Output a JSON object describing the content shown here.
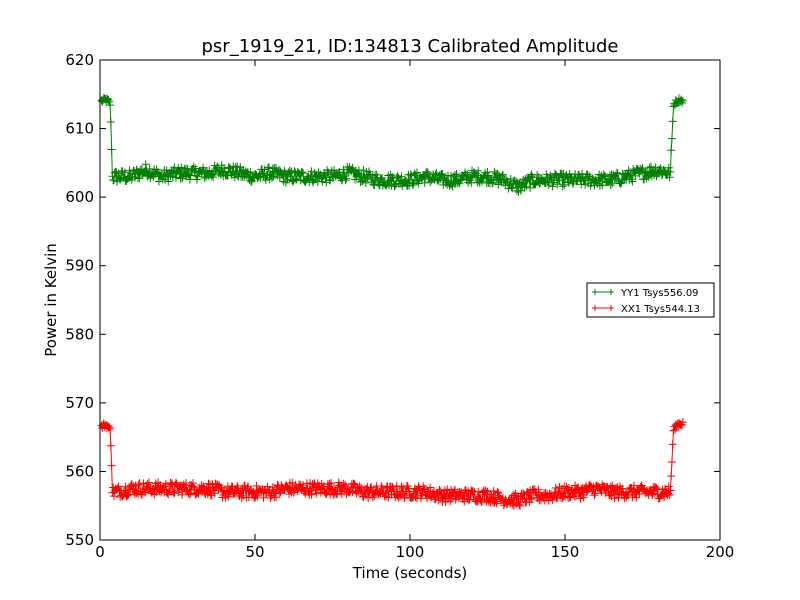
{
  "chart_data": {
    "type": "line",
    "title": "psr_1919_21, ID:134813 Calibrated Amplitude",
    "xlabel": "Time (seconds)",
    "ylabel": "Power in Kelvin",
    "xlim": [
      0,
      200
    ],
    "ylim": [
      550,
      620
    ],
    "xticks": [
      0,
      50,
      100,
      150,
      200
    ],
    "yticks": [
      550,
      560,
      570,
      580,
      590,
      600,
      610,
      620
    ],
    "grid": false,
    "legend_position": "center-right",
    "marker": "plus",
    "series": [
      {
        "name": "YY1 Tsys556.09",
        "color": "#008000",
        "points": [
          [
            0.5,
            614.0
          ],
          [
            1.5,
            614.2
          ],
          [
            2.5,
            614.1
          ],
          [
            3.3,
            613.5
          ],
          [
            3.7,
            608.0
          ],
          [
            4.0,
            603.0
          ],
          [
            5,
            603.0
          ],
          [
            10,
            603.0
          ],
          [
            15,
            604.0
          ],
          [
            20,
            603.0
          ],
          [
            25,
            603.5
          ],
          [
            30,
            603.5
          ],
          [
            35,
            603.5
          ],
          [
            40,
            604.0
          ],
          [
            45,
            603.5
          ],
          [
            50,
            603.0
          ],
          [
            55,
            603.5
          ],
          [
            60,
            603.0
          ],
          [
            65,
            603.0
          ],
          [
            70,
            603.0
          ],
          [
            75,
            603.0
          ],
          [
            80,
            603.5
          ],
          [
            85,
            603.0
          ],
          [
            90,
            602.5
          ],
          [
            95,
            602.5
          ],
          [
            100,
            602.5
          ],
          [
            105,
            603.0
          ],
          [
            110,
            602.5
          ],
          [
            115,
            602.5
          ],
          [
            120,
            603.0
          ],
          [
            125,
            603.0
          ],
          [
            130,
            602.5
          ],
          [
            135,
            601.5
          ],
          [
            140,
            602.5
          ],
          [
            145,
            602.5
          ],
          [
            150,
            602.5
          ],
          [
            155,
            602.5
          ],
          [
            160,
            602.5
          ],
          [
            165,
            602.5
          ],
          [
            170,
            603.0
          ],
          [
            175,
            603.5
          ],
          [
            180,
            604.0
          ],
          [
            184,
            603.5
          ],
          [
            185,
            613.5
          ],
          [
            186,
            614.0
          ],
          [
            187,
            614.2
          ],
          [
            188,
            614.0
          ]
        ]
      },
      {
        "name": "XX1 Tsys544.13",
        "color": "#ff0000",
        "points": [
          [
            0.5,
            566.5
          ],
          [
            1.5,
            566.8
          ],
          [
            2.5,
            566.6
          ],
          [
            3.3,
            566.0
          ],
          [
            3.7,
            562.0
          ],
          [
            4.0,
            557.0
          ],
          [
            5,
            557.0
          ],
          [
            10,
            557.5
          ],
          [
            15,
            557.5
          ],
          [
            20,
            557.5
          ],
          [
            25,
            557.5
          ],
          [
            30,
            557.5
          ],
          [
            35,
            557.5
          ],
          [
            40,
            557.0
          ],
          [
            45,
            557.0
          ],
          [
            50,
            557.0
          ],
          [
            55,
            557.0
          ],
          [
            60,
            557.5
          ],
          [
            65,
            557.5
          ],
          [
            70,
            557.5
          ],
          [
            75,
            557.5
          ],
          [
            80,
            557.5
          ],
          [
            85,
            557.0
          ],
          [
            90,
            557.0
          ],
          [
            95,
            557.0
          ],
          [
            100,
            557.0
          ],
          [
            105,
            557.0
          ],
          [
            110,
            556.5
          ],
          [
            115,
            556.5
          ],
          [
            120,
            556.5
          ],
          [
            125,
            556.5
          ],
          [
            130,
            556.0
          ],
          [
            135,
            555.8
          ],
          [
            140,
            556.5
          ],
          [
            145,
            556.5
          ],
          [
            150,
            557.0
          ],
          [
            155,
            557.0
          ],
          [
            160,
            557.5
          ],
          [
            165,
            557.0
          ],
          [
            170,
            557.0
          ],
          [
            175,
            557.0
          ],
          [
            180,
            557.0
          ],
          [
            184,
            557.0
          ],
          [
            185,
            566.0
          ],
          [
            186,
            566.8
          ],
          [
            187,
            567.0
          ],
          [
            188,
            567.0
          ]
        ]
      }
    ]
  }
}
